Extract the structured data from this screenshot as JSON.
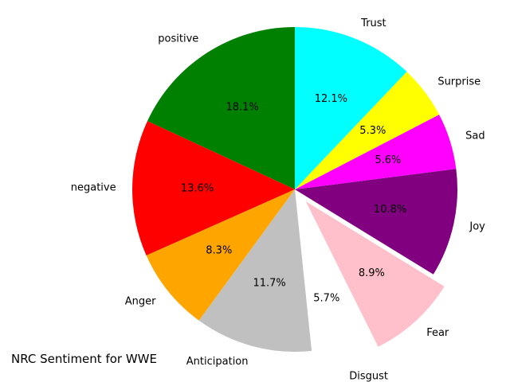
{
  "chart_data": {
    "type": "pie",
    "title": "NRC Sentiment for WWE",
    "start_angle_deg": 90,
    "direction": "counterclockwise",
    "slices": [
      {
        "label": "positive",
        "value": 18.1,
        "pct_label": "18.1%",
        "color": "#008000",
        "explode": 0
      },
      {
        "label": "negative",
        "value": 13.6,
        "pct_label": "13.6%",
        "color": "#ff0000",
        "explode": 0
      },
      {
        "label": "Anger",
        "value": 8.3,
        "pct_label": "8.3%",
        "color": "#ffa500",
        "explode": 0
      },
      {
        "label": "Anticipation",
        "value": 11.7,
        "pct_label": "11.7%",
        "color": "#c0c0c0",
        "explode": 0
      },
      {
        "label": "Disgust",
        "value": 5.7,
        "pct_label": "5.7%",
        "color": "#ffffff",
        "explode": 0.1
      },
      {
        "label": "Fear",
        "value": 8.9,
        "pct_label": "8.9%",
        "color": "#ffc0cb",
        "explode": 0.1
      },
      {
        "label": "Joy",
        "value": 10.8,
        "pct_label": "10.8%",
        "color": "#800080",
        "explode": 0
      },
      {
        "label": "Sad",
        "value": 5.6,
        "pct_label": "5.6%",
        "color": "#ff00ff",
        "explode": 0
      },
      {
        "label": "Surprise",
        "value": 5.3,
        "pct_label": "5.3%",
        "color": "#ffff00",
        "explode": 0
      },
      {
        "label": "Trust",
        "value": 12.1,
        "pct_label": "12.1%",
        "color": "#00ffff",
        "explode": 0
      }
    ]
  }
}
